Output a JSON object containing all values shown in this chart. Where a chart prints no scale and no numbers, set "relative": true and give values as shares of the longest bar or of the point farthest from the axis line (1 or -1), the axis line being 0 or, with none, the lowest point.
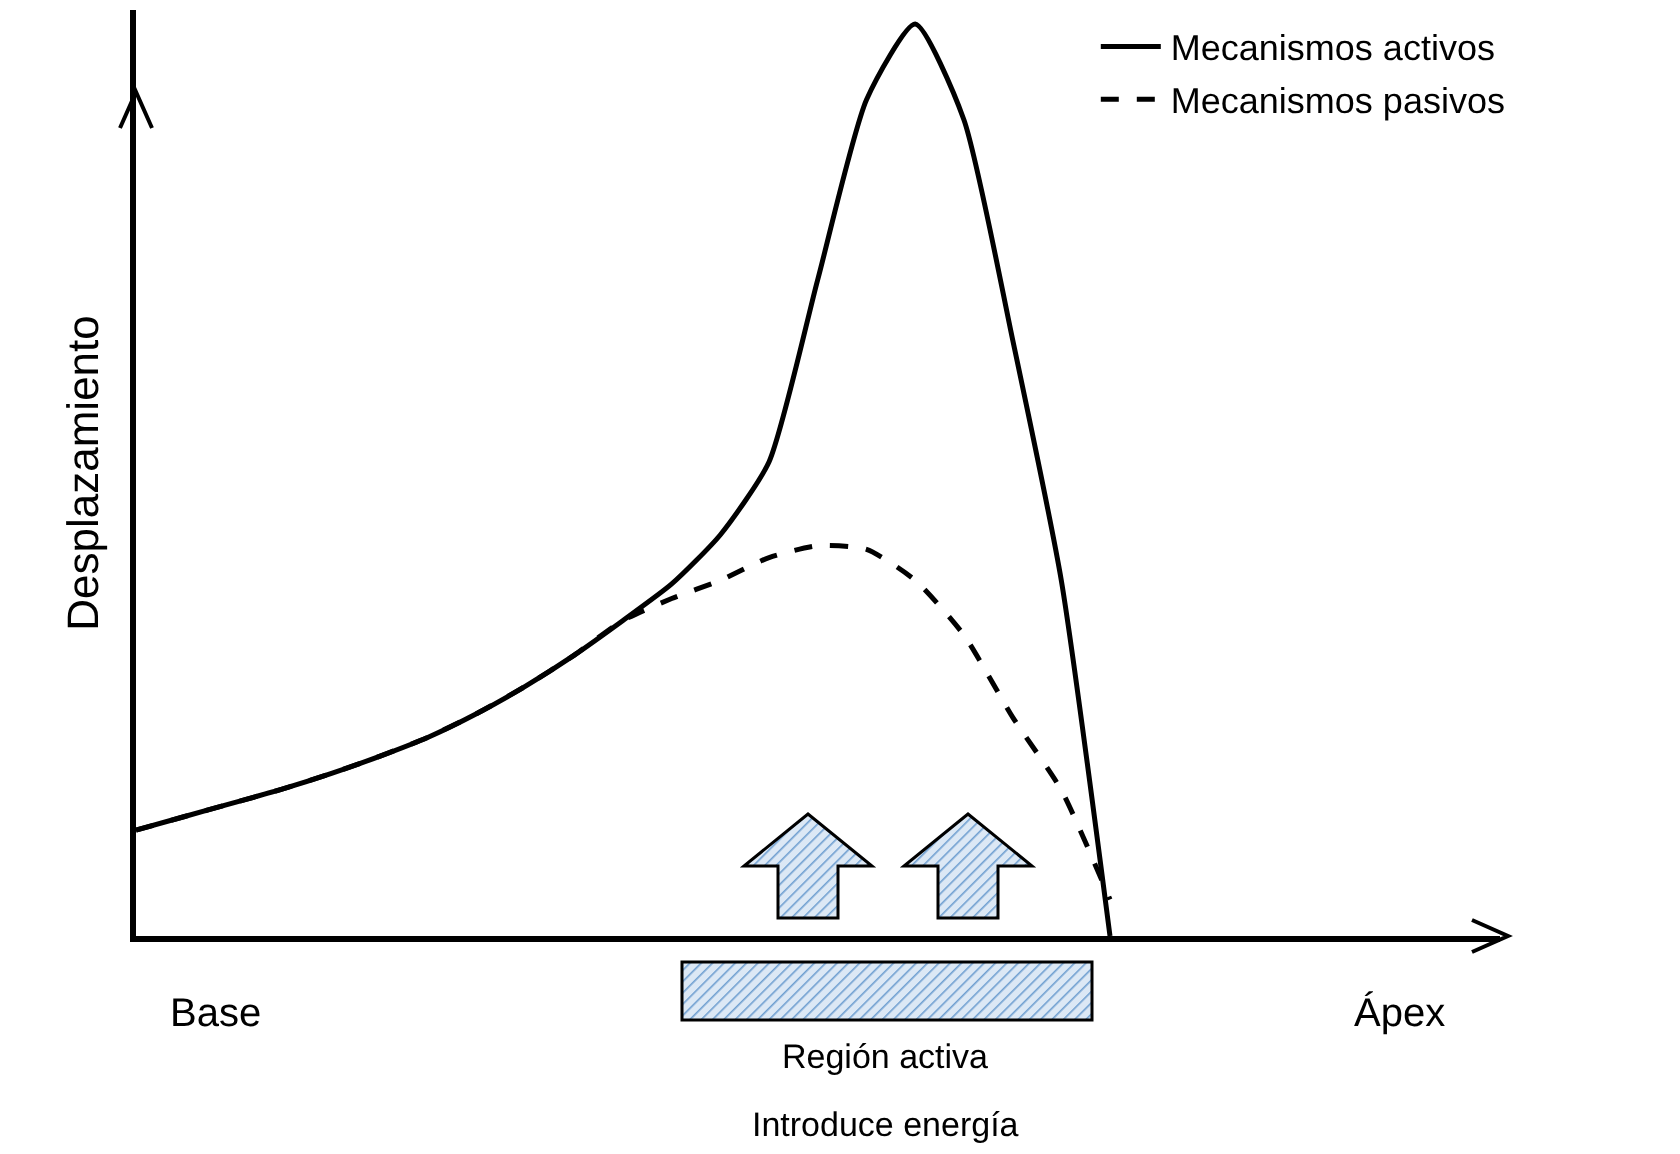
{
  "chart_data": {
    "type": "line",
    "relative": true,
    "ylabel": "Desplazamiento",
    "legend": "top right",
    "categories": [
      null,
      null,
      null,
      null,
      null,
      null,
      null,
      null,
      null,
      null,
      null,
      null,
      null,
      null,
      null,
      null,
      null,
      null,
      null,
      null,
      null
    ],
    "series": [
      {
        "name": "Mecanismos activos",
        "color": "#000000",
        "line_style": "solid",
        "values": [
          0.116,
          0.131,
          0.146,
          0.161,
          0.178,
          0.197,
          0.218,
          0.244,
          0.274,
          0.308,
          0.346,
          0.386,
          0.44,
          0.52,
          0.72,
          0.917,
          1,
          0.895,
          0.654,
          0.39,
          0
        ]
      },
      {
        "name": "Mecanismos pasivos",
        "color": "#000000",
        "line_style": "dashed",
        "values": [
          0.116,
          0.131,
          0.146,
          0.161,
          0.178,
          0.197,
          0.218,
          0.244,
          0.274,
          0.308,
          0.346,
          0.37,
          0.39,
          0.415,
          0.428,
          0.424,
          0.39,
          0.33,
          0.24,
          0.16,
          0.04
        ]
      }
    ],
    "annotations": [
      "Base",
      "Ápex",
      "Región activa",
      "Introduce energía"
    ]
  }
}
